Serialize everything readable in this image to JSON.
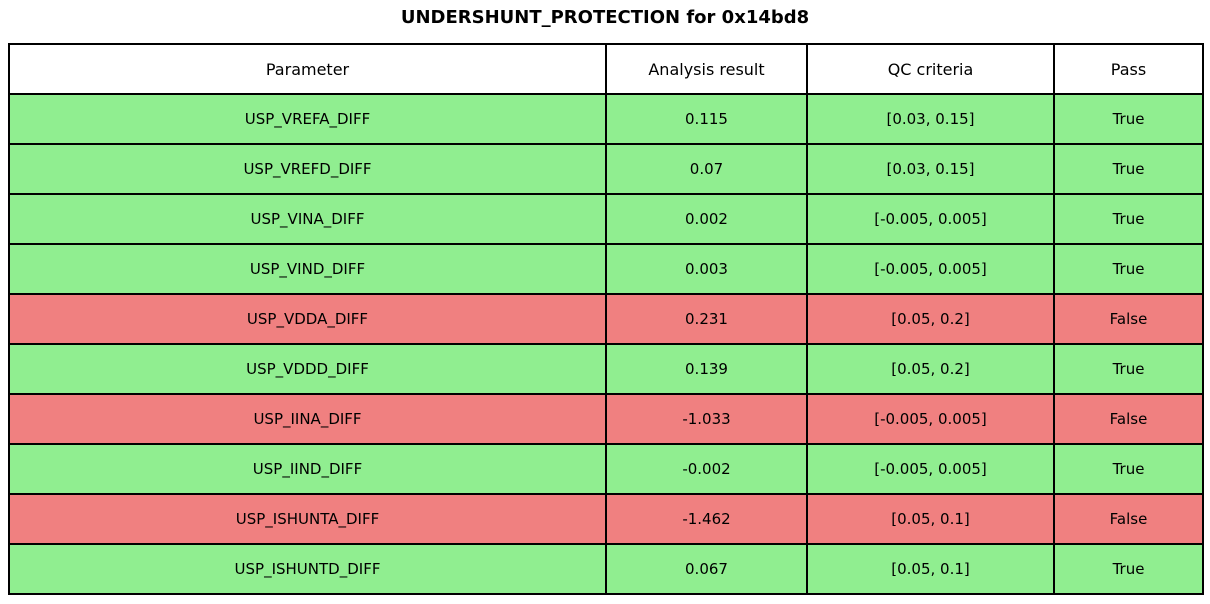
{
  "title": "UNDERSHUNT_PROTECTION for 0x14bd8",
  "colors": {
    "pass_row_bg": "#90ee90",
    "fail_row_bg": "#f08080",
    "header_bg": "#ffffff",
    "border": "#000000",
    "text": "#000000"
  },
  "chart_data": {
    "type": "table",
    "title": "UNDERSHUNT_PROTECTION for 0x14bd8",
    "columns": [
      "Parameter",
      "Analysis result",
      "QC criteria",
      "Pass"
    ],
    "rows": [
      {
        "parameter": "USP_VREFA_DIFF",
        "analysis_result": "0.115",
        "qc_criteria": "[0.03, 0.15]",
        "pass": "True"
      },
      {
        "parameter": "USP_VREFD_DIFF",
        "analysis_result": "0.07",
        "qc_criteria": "[0.03, 0.15]",
        "pass": "True"
      },
      {
        "parameter": "USP_VINA_DIFF",
        "analysis_result": "0.002",
        "qc_criteria": "[-0.005, 0.005]",
        "pass": "True"
      },
      {
        "parameter": "USP_VIND_DIFF",
        "analysis_result": "0.003",
        "qc_criteria": "[-0.005, 0.005]",
        "pass": "True"
      },
      {
        "parameter": "USP_VDDA_DIFF",
        "analysis_result": "0.231",
        "qc_criteria": "[0.05, 0.2]",
        "pass": "False"
      },
      {
        "parameter": "USP_VDDD_DIFF",
        "analysis_result": "0.139",
        "qc_criteria": "[0.05, 0.2]",
        "pass": "True"
      },
      {
        "parameter": "USP_IINA_DIFF",
        "analysis_result": "-1.033",
        "qc_criteria": "[-0.005, 0.005]",
        "pass": "False"
      },
      {
        "parameter": "USP_IIND_DIFF",
        "analysis_result": "-0.002",
        "qc_criteria": "[-0.005, 0.005]",
        "pass": "True"
      },
      {
        "parameter": "USP_ISHUNTA_DIFF",
        "analysis_result": "-1.462",
        "qc_criteria": "[0.05, 0.1]",
        "pass": "False"
      },
      {
        "parameter": "USP_ISHUNTD_DIFF",
        "analysis_result": "0.067",
        "qc_criteria": "[0.05, 0.1]",
        "pass": "True"
      }
    ]
  }
}
